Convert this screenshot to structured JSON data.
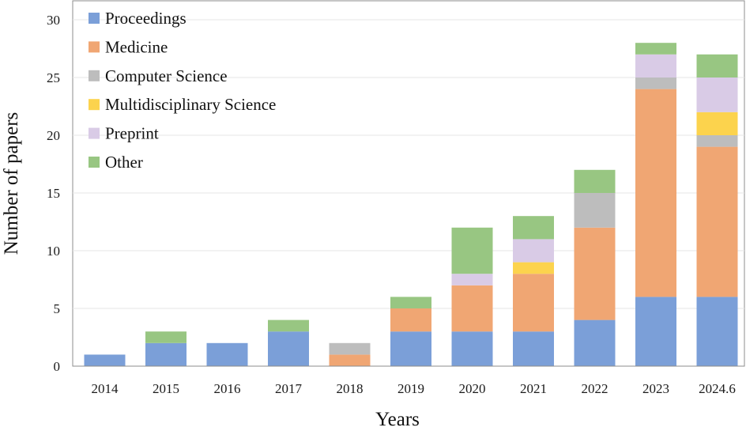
{
  "chart_data": {
    "type": "bar",
    "stacked": true,
    "title": "",
    "xlabel": "Years",
    "ylabel": "Number of papers",
    "ylim": [
      0,
      30
    ],
    "yticks": [
      0,
      5,
      10,
      15,
      20,
      25,
      30
    ],
    "grid": true,
    "legend_position": "top-left",
    "categories": [
      "2014",
      "2015",
      "2016",
      "2017",
      "2018",
      "2019",
      "2020",
      "2021",
      "2022",
      "2023",
      "2024.6"
    ],
    "series": [
      {
        "name": "Proceedings",
        "color": "#7b9fd8",
        "values": [
          1,
          2,
          2,
          3,
          0,
          3,
          3,
          3,
          4,
          6,
          6
        ]
      },
      {
        "name": "Medicine",
        "color": "#f0a673",
        "values": [
          0,
          0,
          0,
          0,
          1,
          2,
          4,
          5,
          8,
          18,
          13
        ]
      },
      {
        "name": "Computer Science",
        "color": "#bdbdbd",
        "values": [
          0,
          0,
          0,
          0,
          1,
          0,
          0,
          0,
          3,
          1,
          1
        ]
      },
      {
        "name": "Multidisciplinary Science",
        "color": "#fcd34d",
        "values": [
          0,
          0,
          0,
          0,
          0,
          0,
          0,
          1,
          0,
          0,
          2
        ]
      },
      {
        "name": "Preprint",
        "color": "#d9cbe6",
        "values": [
          0,
          0,
          0,
          0,
          0,
          0,
          1,
          2,
          0,
          2,
          3
        ]
      },
      {
        "name": "Other",
        "color": "#98c682",
        "values": [
          0,
          1,
          0,
          1,
          0,
          1,
          4,
          2,
          2,
          1,
          2
        ]
      }
    ]
  }
}
